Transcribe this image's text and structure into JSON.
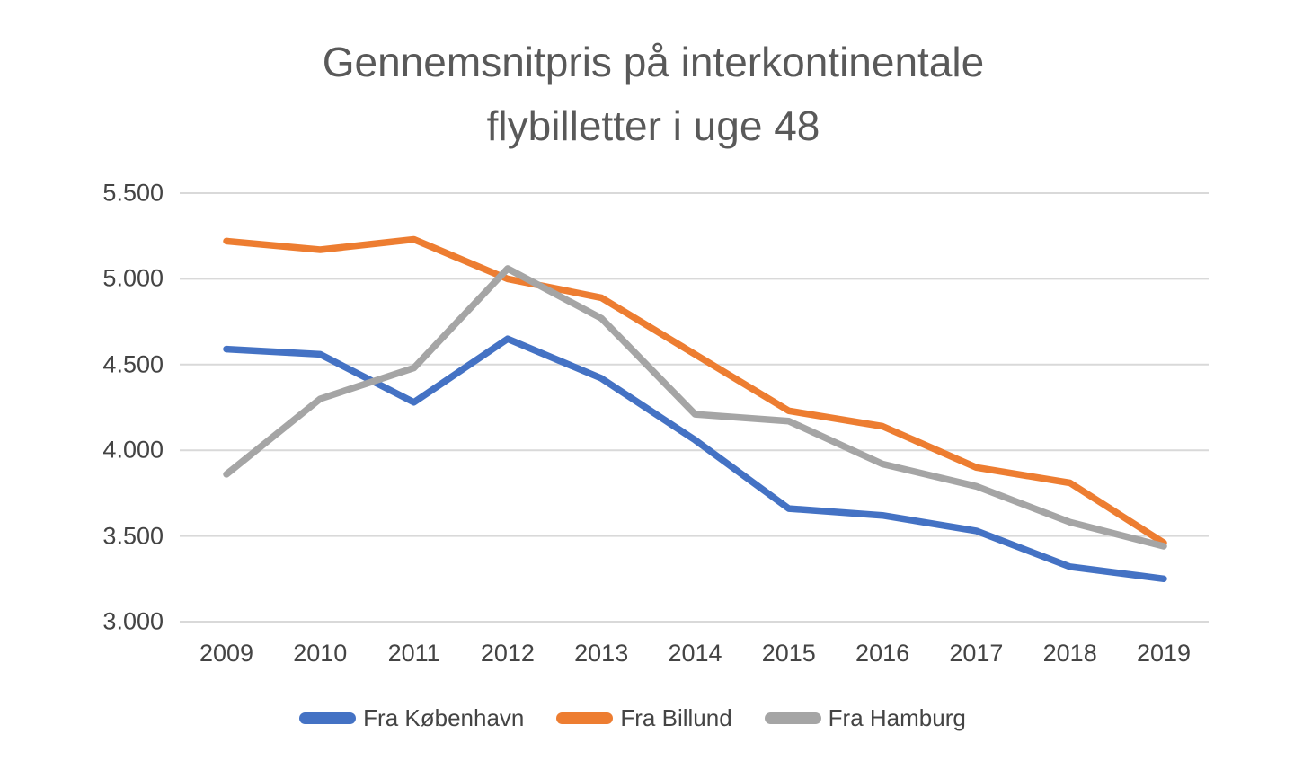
{
  "title": {
    "line1": "Gennemsnitpris på interkontinentale",
    "line2": "flybilletter i uge 48"
  },
  "chart_data": {
    "type": "line",
    "x_categories": [
      "2009",
      "2010",
      "2011",
      "2012",
      "2013",
      "2014",
      "2015",
      "2016",
      "2017",
      "2018",
      "2019"
    ],
    "y_axis": {
      "min": 3000,
      "max": 5500,
      "step": 500,
      "tick_labels": [
        "5.500",
        "5.000",
        "4.500",
        "4.000",
        "3.500",
        "3.000"
      ]
    },
    "grid": true,
    "legend_position": "bottom",
    "series": [
      {
        "name": "Fra København",
        "color": "#4472C4",
        "values": [
          4590,
          4560,
          4280,
          4650,
          4420,
          4060,
          3660,
          3620,
          3530,
          3320,
          3250
        ]
      },
      {
        "name": "Fra Billund",
        "color": "#ED7D31",
        "values": [
          5220,
          5170,
          5230,
          5000,
          4890,
          4560,
          4230,
          4140,
          3900,
          3810,
          3460
        ]
      },
      {
        "name": "Fra Hamburg",
        "color": "#A5A5A5",
        "values": [
          3860,
          4300,
          4480,
          5060,
          4770,
          4210,
          4170,
          3920,
          3790,
          3580,
          3440
        ]
      }
    ]
  },
  "colors": {
    "title_text": "#595959",
    "axis_text": "#444444",
    "gridline": "#D9D9D9",
    "background": "#FFFFFF"
  }
}
